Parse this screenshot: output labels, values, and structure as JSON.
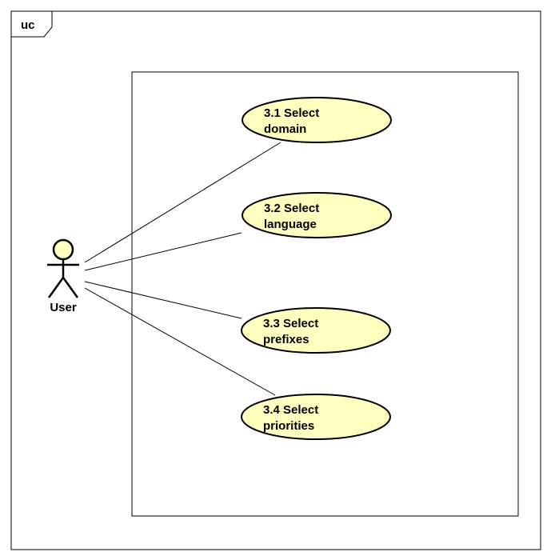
{
  "frame": {
    "tag": "uc"
  },
  "colors": {
    "use_case_fill": "#FFFFC0",
    "line": "#000000",
    "background": "#FFFFFF"
  },
  "actor": {
    "name": "User",
    "icon": "stick-figure-icon"
  },
  "use_cases": [
    {
      "id": "uc-3-1",
      "line1": "3.1 Select",
      "line2": "domain"
    },
    {
      "id": "uc-3-2",
      "line1": "3.2 Select",
      "line2": "language"
    },
    {
      "id": "uc-3-3",
      "line1": "3.3 Select",
      "line2": "prefixes"
    },
    {
      "id": "uc-3-4",
      "line1": "3.4 Select",
      "line2": "priorities"
    }
  ]
}
